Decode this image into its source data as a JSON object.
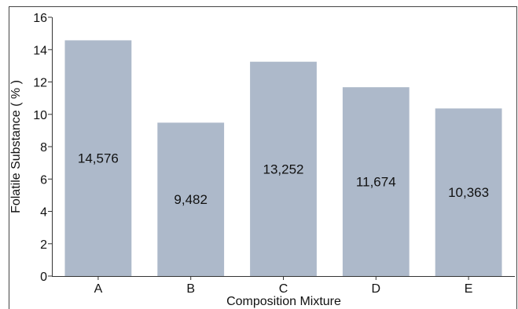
{
  "chart_data": {
    "type": "bar",
    "title": "",
    "xlabel": "Composition Mixture",
    "ylabel": "Folatile Substance ( % )",
    "categories": [
      "A",
      "B",
      "C",
      "D",
      "E"
    ],
    "values": [
      14.576,
      9.482,
      13.252,
      11.674,
      10.363
    ],
    "data_labels": [
      "14,576",
      "9,482",
      "13,252",
      "11,674",
      "10,363"
    ],
    "ylim": [
      0,
      16
    ],
    "yticks": [
      0,
      2,
      4,
      6,
      8,
      10,
      12,
      14,
      16
    ],
    "grid": false,
    "legend": "none",
    "colors": {
      "bar": "#adb9ca",
      "axis": "#333333",
      "frame": "#444444",
      "text": "#111111"
    }
  }
}
